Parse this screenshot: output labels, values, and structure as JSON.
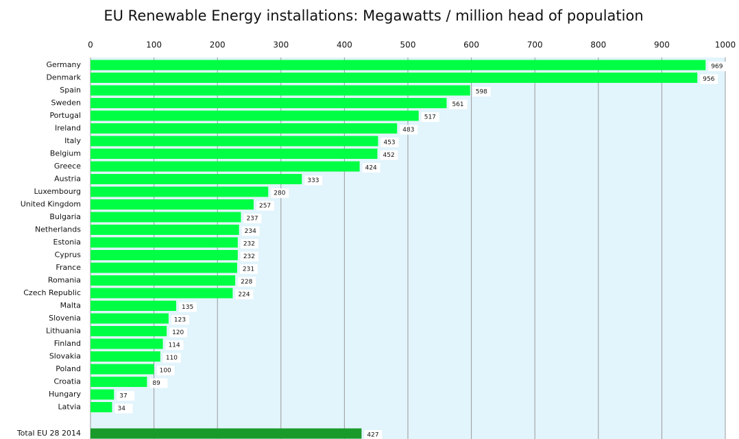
{
  "chart_data": {
    "type": "barh",
    "title": "EU Renewable Energy installations:  Megawatts / million head of population",
    "categories": [
      "Germany",
      "Denmark",
      "Spain",
      "Sweden",
      "Portugal",
      "Ireland",
      "Italy",
      "Belgium",
      "Greece",
      "Austria",
      "Luxembourg",
      "United Kingdom",
      "Bulgaria",
      "Netherlands",
      "Estonia",
      "Cyprus",
      "France",
      "Romania",
      "Czech Republic",
      "Malta",
      "Slovenia",
      "Lithuania",
      "Finland",
      "Slovakia",
      "Poland",
      "Croatia",
      "Hungary",
      "Latvia"
    ],
    "values": [
      969,
      956,
      598,
      561,
      517,
      483,
      453,
      452,
      424,
      333,
      280,
      257,
      237,
      234,
      232,
      232,
      231,
      228,
      224,
      135,
      123,
      120,
      114,
      110,
      100,
      89,
      37,
      34
    ],
    "color": "#00ff44",
    "total": {
      "label": "Total  EU 28  2014",
      "value": 427,
      "color": "#1a9a2a"
    },
    "xlim": [
      0,
      1000
    ],
    "xticks": [
      0,
      100,
      200,
      300,
      400,
      500,
      600,
      700,
      800,
      900,
      1000
    ],
    "grid": true
  }
}
